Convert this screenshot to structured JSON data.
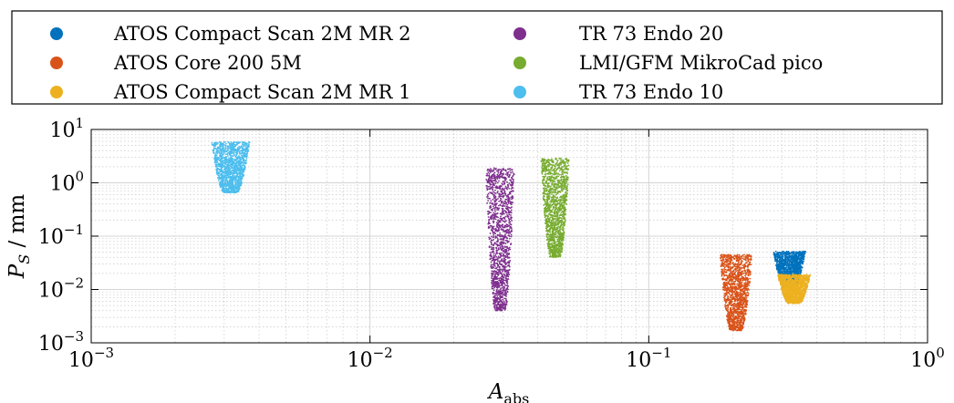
{
  "chart_data": {
    "type": "scatter",
    "title": "",
    "xlabel": {
      "base": "A",
      "sub": "abs"
    },
    "ylabel": {
      "base": "P",
      "sub": "S",
      "unit": " / mm"
    },
    "xscale": "log",
    "yscale": "log",
    "xlim": [
      0.001,
      1
    ],
    "ylim": [
      0.001,
      10
    ],
    "grid": true,
    "legend_position": "top, outside plot, two columns",
    "xticks": [
      {
        "value": 0.001,
        "base": "10",
        "exp": "−3"
      },
      {
        "value": 0.01,
        "base": "10",
        "exp": "−2"
      },
      {
        "value": 0.1,
        "base": "10",
        "exp": "−1"
      },
      {
        "value": 1,
        "base": "10",
        "exp": "0"
      }
    ],
    "yticks": [
      {
        "value": 0.001,
        "base": "10",
        "exp": "−3"
      },
      {
        "value": 0.01,
        "base": "10",
        "exp": "−2"
      },
      {
        "value": 0.1,
        "base": "10",
        "exp": "−1"
      },
      {
        "value": 1,
        "base": "10",
        "exp": "0"
      },
      {
        "value": 10,
        "base": "10",
        "exp": "1"
      }
    ],
    "series": [
      {
        "name": "ATOS Compact Scan 2M MR 2",
        "color": "#0072BD",
        "region": {
          "x": [
            0.28,
            0.365
          ],
          "y": [
            0.011,
            0.052
          ]
        },
        "points": [
          [
            0.28,
            0.012
          ],
          [
            0.3,
            0.02
          ],
          [
            0.32,
            0.03
          ],
          [
            0.34,
            0.045
          ],
          [
            0.36,
            0.05
          ],
          [
            0.29,
            0.04
          ]
        ]
      },
      {
        "name": "ATOS Core 200 5M",
        "color": "#D95319",
        "region": {
          "x": [
            0.18,
            0.235
          ],
          "y": [
            0.0017,
            0.045
          ]
        },
        "points": [
          [
            0.18,
            0.04
          ],
          [
            0.19,
            0.002
          ],
          [
            0.2,
            0.01
          ],
          [
            0.22,
            0.03
          ],
          [
            0.23,
            0.02
          ],
          [
            0.19,
            0.0017
          ]
        ]
      },
      {
        "name": "ATOS Compact Scan 2M MR 1",
        "color": "#EDB120",
        "region": {
          "x": [
            0.29,
            0.38
          ],
          "y": [
            0.0055,
            0.019
          ]
        },
        "points": [
          [
            0.29,
            0.006
          ],
          [
            0.31,
            0.01
          ],
          [
            0.33,
            0.015
          ],
          [
            0.36,
            0.018
          ],
          [
            0.38,
            0.012
          ],
          [
            0.3,
            0.0055
          ]
        ]
      },
      {
        "name": "TR 73 Endo 20",
        "color": "#7E2F8E",
        "region": {
          "x": [
            0.026,
            0.033
          ],
          "y": [
            0.004,
            1.9
          ]
        },
        "points": [
          [
            0.026,
            1.8
          ],
          [
            0.027,
            0.5
          ],
          [
            0.028,
            0.05
          ],
          [
            0.03,
            0.01
          ],
          [
            0.032,
            0.2
          ],
          [
            0.033,
            0.004
          ]
        ]
      },
      {
        "name": "LMI/GFM MikroCad pico",
        "color": "#77AC30",
        "region": {
          "x": [
            0.041,
            0.052
          ],
          "y": [
            0.04,
            2.9
          ]
        },
        "points": [
          [
            0.041,
            2.8
          ],
          [
            0.043,
            1.0
          ],
          [
            0.045,
            0.3
          ],
          [
            0.048,
            0.1
          ],
          [
            0.051,
            0.5
          ],
          [
            0.042,
            0.04
          ]
        ]
      },
      {
        "name": "TR 73 Endo 10",
        "color": "#4DBEEE",
        "region": {
          "x": [
            0.0027,
            0.0037
          ],
          "y": [
            0.65,
            5.8
          ]
        },
        "points": [
          [
            0.0027,
            5.5
          ],
          [
            0.0028,
            2.0
          ],
          [
            0.003,
            1.0
          ],
          [
            0.0033,
            3.0
          ],
          [
            0.0036,
            1.5
          ],
          [
            0.0028,
            0.7
          ]
        ]
      }
    ]
  }
}
